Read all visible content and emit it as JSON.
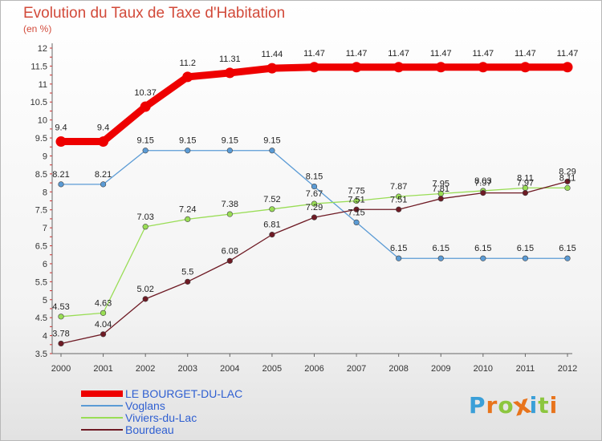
{
  "title": "Evolution du Taux de Taxe d'Habitation",
  "subtitle": "(en %)",
  "logo": {
    "text": "Proxiti",
    "letter_colors": [
      "#3a9fd8",
      "#e8741c",
      "#8cc63f",
      "#e8741c",
      "#3a9fd8",
      "#8cc63f",
      "#e8741c"
    ]
  },
  "chart_data": {
    "type": "line",
    "x": [
      "2000",
      "2001",
      "2002",
      "2003",
      "2004",
      "2005",
      "2006",
      "2007",
      "2008",
      "2009",
      "2010",
      "2011",
      "2012"
    ],
    "ylim": [
      3.5,
      12
    ],
    "yticks": [
      "3.5",
      "4",
      "4.5",
      "5",
      "5.5",
      "6",
      "6.5",
      "7",
      "7.5",
      "8",
      "8.5",
      "9",
      "9.5",
      "10",
      "10.5",
      "11",
      "11.5",
      "12"
    ],
    "grid": false,
    "legend_position": "bottom-left",
    "series": [
      {
        "name": "LE BOURGET-DU-LAC",
        "color": "#ee0000",
        "values": [
          9.4,
          9.4,
          10.37,
          11.2,
          11.31,
          11.44,
          11.47,
          11.47,
          11.47,
          11.47,
          11.47,
          11.47,
          11.47
        ],
        "labels": [
          "9.4",
          "9.4",
          "10.37",
          "11.2",
          "11.31",
          "11.44",
          "11.47",
          "11.47",
          "11.47",
          "11.47",
          "11.47",
          "11.47",
          "11.47"
        ]
      },
      {
        "name": "Voglans",
        "color": "#5b9bd5",
        "values": [
          8.21,
          8.21,
          9.15,
          9.15,
          9.15,
          9.15,
          8.15,
          7.15,
          6.15,
          6.15,
          6.15,
          6.15,
          6.15
        ],
        "labels": [
          "8.21",
          "8.21",
          "9.15",
          "9.15",
          "9.15",
          "9.15",
          "8.15",
          "7.15",
          "6.15",
          "6.15",
          "6.15",
          "6.15",
          "6.15"
        ]
      },
      {
        "name": "Viviers-du-Lac",
        "color": "#99dd55",
        "values": [
          4.53,
          4.63,
          7.03,
          7.24,
          7.38,
          7.52,
          7.67,
          7.75,
          7.87,
          7.95,
          8.03,
          8.11,
          8.11
        ],
        "labels": [
          "4.53",
          "4.63",
          "7.03",
          "7.24",
          "7.38",
          "7.52",
          "7.67",
          "7.75",
          "7.87",
          "7.95",
          "8.03",
          "8.11",
          "8.11"
        ]
      },
      {
        "name": "Bourdeau",
        "color": "#6e1a24",
        "values": [
          3.78,
          4.04,
          5.02,
          5.5,
          6.08,
          6.81,
          7.29,
          7.51,
          7.51,
          7.81,
          7.97,
          7.97,
          8.29
        ],
        "labels": [
          "3.78",
          "4.04",
          "5.02",
          "5.5",
          "6.08",
          "6.81",
          "7.29",
          "7.51",
          "7.51",
          "7.81",
          "7.97",
          "7.97",
          "8.29"
        ]
      }
    ]
  }
}
